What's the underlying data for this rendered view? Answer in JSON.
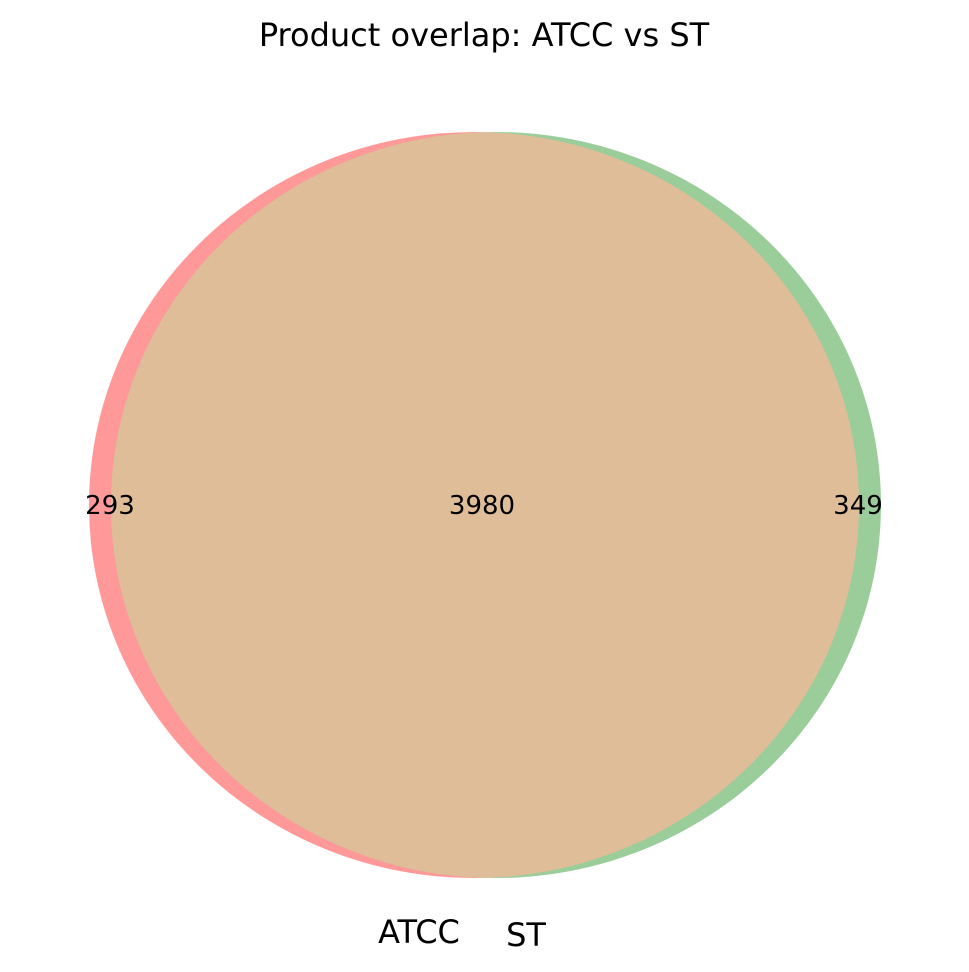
{
  "title": "Product overlap: ATCC vs ST",
  "sets": [
    {
      "name": "ATCC",
      "only_count": "293",
      "color": "#ff9999"
    },
    {
      "name": "ST",
      "only_count": "349",
      "color": "#9bcd9b"
    }
  ],
  "intersection": {
    "count": "3980",
    "color": "#dfbd98"
  }
}
